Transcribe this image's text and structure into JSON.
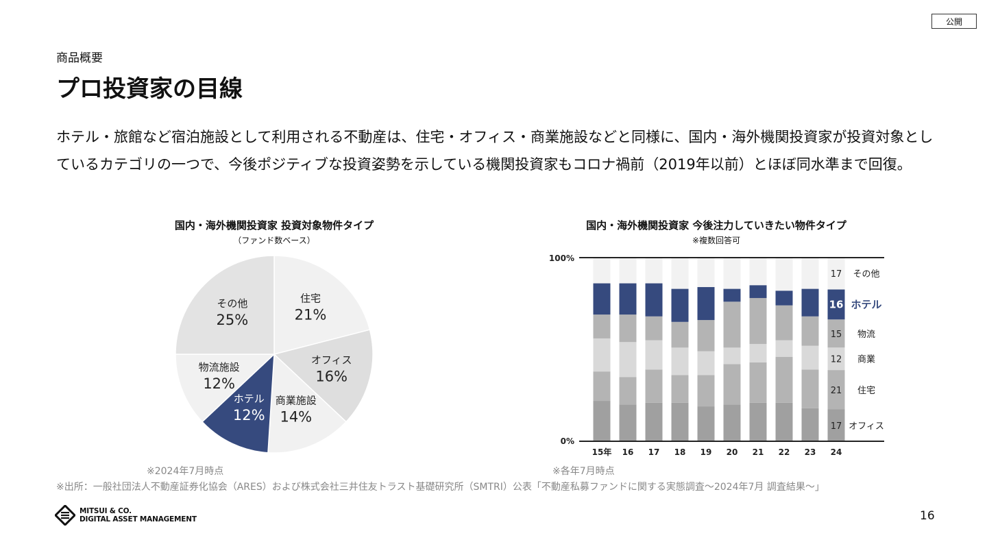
{
  "badge": "公開",
  "section": "商品概要",
  "title": "プロ投資家の目線",
  "body": "ホテル・旅館など宿泊施設として利用される不動産は、住宅・オフィス・商業施設などと同様に、国内・海外機関投資家が投資対象としているカテゴリの一つで、今後ポジティブな投資姿勢を示している機関投資家もコロナ禍前（2019年以前）とほぼ同水準まで回復。",
  "source": "※出所：一般社団法人不動産証券化協会（ARES）および株式会社三井住友トラスト基礎研究所（SMTRI）公表「不動産私募ファンドに関する実態調査〜2024年7月 調査結果〜」",
  "page_number": "16",
  "logo": {
    "line1": "MITSUI & CO.",
    "line2": "DIGITAL ASSET MANAGEMENT"
  },
  "chart_data": [
    {
      "type": "pie",
      "title": "国内・海外機関投資家 投資対象物件タイプ",
      "subtitle": "（ファンド数ベース）",
      "note": "※2024年7月時点",
      "slices": [
        {
          "label": "住宅",
          "value": 21,
          "display": "21%",
          "color": "#f1f1f1",
          "text": "#222"
        },
        {
          "label": "オフィス",
          "value": 16,
          "display": "16%",
          "color": "#dedede",
          "text": "#222"
        },
        {
          "label": "商業施設",
          "value": 14,
          "display": "14%",
          "color": "#f1f1f1",
          "text": "#222"
        },
        {
          "label": "ホテル",
          "value": 12,
          "display": "12%",
          "color": "#364a7e",
          "text": "#fff"
        },
        {
          "label": "物流施設",
          "value": 12,
          "display": "12%",
          "color": "#f1f1f1",
          "text": "#222"
        },
        {
          "label": "その他",
          "value": 25,
          "display": "25%",
          "color": "#e3e3e3",
          "text": "#222"
        }
      ]
    },
    {
      "type": "bar",
      "stacked": true,
      "title": "国内・海外機関投資家 今後注力していきたい物件タイプ",
      "subtitle": "※複数回答可",
      "note": "※各年7月時点",
      "ylim": [
        0,
        100
      ],
      "yticks": [
        "0%",
        "100%"
      ],
      "categories": [
        "15年",
        "16",
        "17",
        "18",
        "19",
        "20",
        "21",
        "22",
        "23",
        "24"
      ],
      "series": [
        {
          "name": "オフィス",
          "color": "#a0a0a0",
          "values": [
            22,
            20,
            21,
            21,
            19,
            20,
            21,
            21,
            18,
            17
          ]
        },
        {
          "name": "住宅",
          "color": "#b4b4b4",
          "values": [
            16,
            15,
            18,
            15,
            17,
            22,
            22,
            25,
            21,
            21
          ]
        },
        {
          "name": "商業",
          "color": "#d9d9d9",
          "values": [
            18,
            19,
            16,
            15,
            13,
            9,
            10,
            9,
            13,
            12
          ]
        },
        {
          "name": "物流",
          "color": "#b4b4b4",
          "values": [
            13,
            15,
            13,
            14,
            17,
            25,
            25,
            19,
            16,
            15
          ]
        },
        {
          "name": "ホテル",
          "color": "#364a7e",
          "values": [
            17,
            17,
            18,
            18,
            18,
            7,
            7,
            8,
            15,
            16
          ]
        },
        {
          "name": "その他",
          "color": "#f2f2f2",
          "values": [
            14,
            14,
            14,
            17,
            16,
            17,
            15,
            18,
            17,
            17
          ]
        }
      ]
    }
  ]
}
